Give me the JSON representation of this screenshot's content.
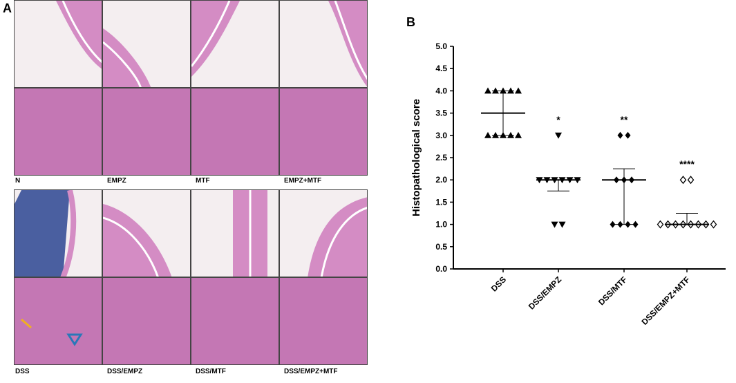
{
  "panel_a": {
    "label": "A",
    "captions": [
      "N",
      "EMPZ",
      "MTF",
      "EMPZ+MTF",
      "DSS",
      "DSS/EMPZ",
      "DSS/MTF",
      "DSS/EMPZ+MTF"
    ]
  },
  "panel_b": {
    "label": "B"
  },
  "chart_data": {
    "type": "scatter",
    "title": "",
    "xlabel": "",
    "ylabel": "Histopathological score",
    "ylim": [
      0.0,
      5.0
    ],
    "yticks": [
      "0.0",
      "0.5",
      "1.0",
      "1.5",
      "2.0",
      "2.5",
      "3.0",
      "3.5",
      "4.0",
      "4.5",
      "5.0"
    ],
    "categories": [
      "DSS",
      "DSS/EMPZ",
      "DSS/MTF",
      "DSS/EMPZ+MTF"
    ],
    "series": [
      {
        "category": "DSS",
        "marker": "triangle-up",
        "values": [
          4,
          4,
          4,
          4,
          4,
          3,
          3,
          3,
          3,
          3
        ],
        "median": 3.5,
        "iqr": [
          3.0,
          4.0
        ],
        "significance": ""
      },
      {
        "category": "DSS/EMPZ",
        "marker": "triangle-down",
        "values": [
          3,
          2,
          2,
          2,
          2,
          2,
          2,
          1,
          1
        ],
        "median": 2.0,
        "iqr": [
          1.75,
          2.0
        ],
        "significance": "*"
      },
      {
        "category": "DSS/MTF",
        "marker": "diamond",
        "values": [
          3,
          3,
          2,
          2,
          2,
          1,
          1,
          1,
          1
        ],
        "median": 2.0,
        "iqr": [
          1.0,
          2.25
        ],
        "significance": "**"
      },
      {
        "category": "DSS/EMPZ+MTF",
        "marker": "diamond-open",
        "values": [
          2,
          2,
          1,
          1,
          1,
          1,
          1,
          1,
          1,
          1
        ],
        "median": 1.0,
        "iqr": [
          1.0,
          1.25
        ],
        "significance": "****"
      }
    ]
  }
}
